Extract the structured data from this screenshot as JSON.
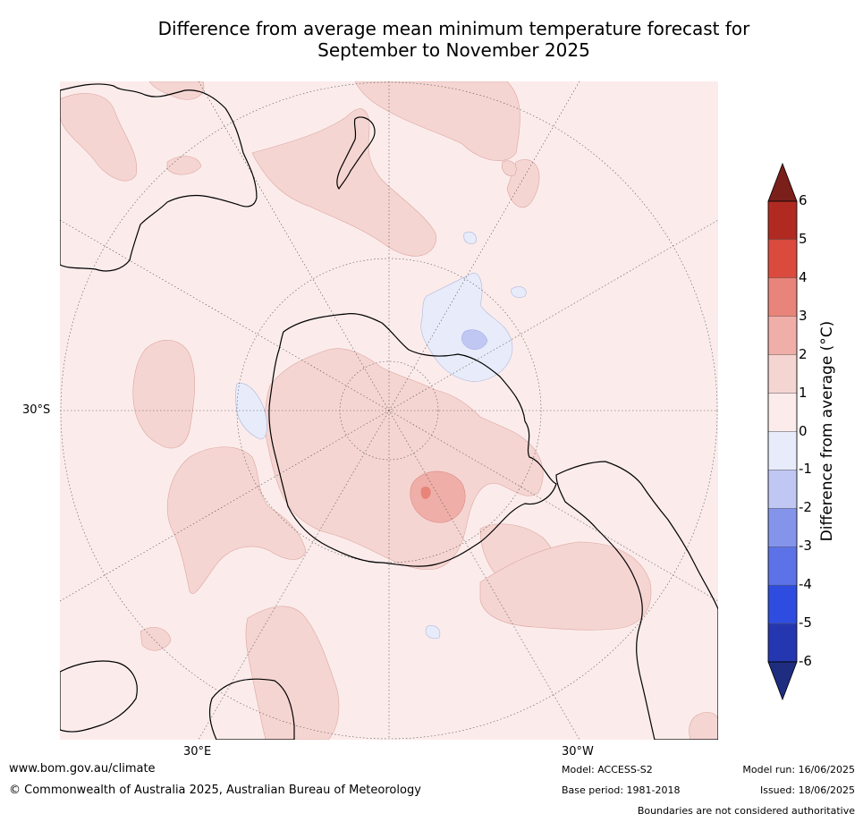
{
  "title": {
    "line1": "Difference from average mean minimum temperature forecast for",
    "line2": "September to November 2025"
  },
  "map": {
    "projection": "south polar stereographic",
    "lat_label": "30°S",
    "lon_labels": [
      "30°E",
      "30°W"
    ],
    "background_color": "#fbeceb",
    "features": [
      "continents-outline",
      "antarctica-outline",
      "graticule",
      "temperature-anomaly-fill"
    ]
  },
  "colorbar": {
    "title": "Difference from average (°C)",
    "ticks": [
      "6",
      "5",
      "4",
      "3",
      "2",
      "1",
      "0",
      "-1",
      "-2",
      "-3",
      "-4",
      "-5",
      "-6"
    ],
    "colors": [
      "#b12a22",
      "#db4b3d",
      "#e8847a",
      "#efafa8",
      "#f5d5d2",
      "#fbeceb",
      "#e8ecfa",
      "#c0c7f2",
      "#8594eb",
      "#5d72e6",
      "#2e4de0",
      "#2437b0"
    ],
    "over_color": "#7a1f1a",
    "under_color": "#1f2d80"
  },
  "footer": {
    "url": "www.bom.gov.au/climate",
    "copyright": "© Commonwealth of Australia 2025, Australian Bureau of Meteorology",
    "model": "Model: ACCESS-S2",
    "base_period": "Base period: 1981-2018",
    "model_run": "Model run: 16/06/2025",
    "issued": "Issued: 18/06/2025",
    "disclaimer": "Boundaries are not considered authoritative"
  }
}
